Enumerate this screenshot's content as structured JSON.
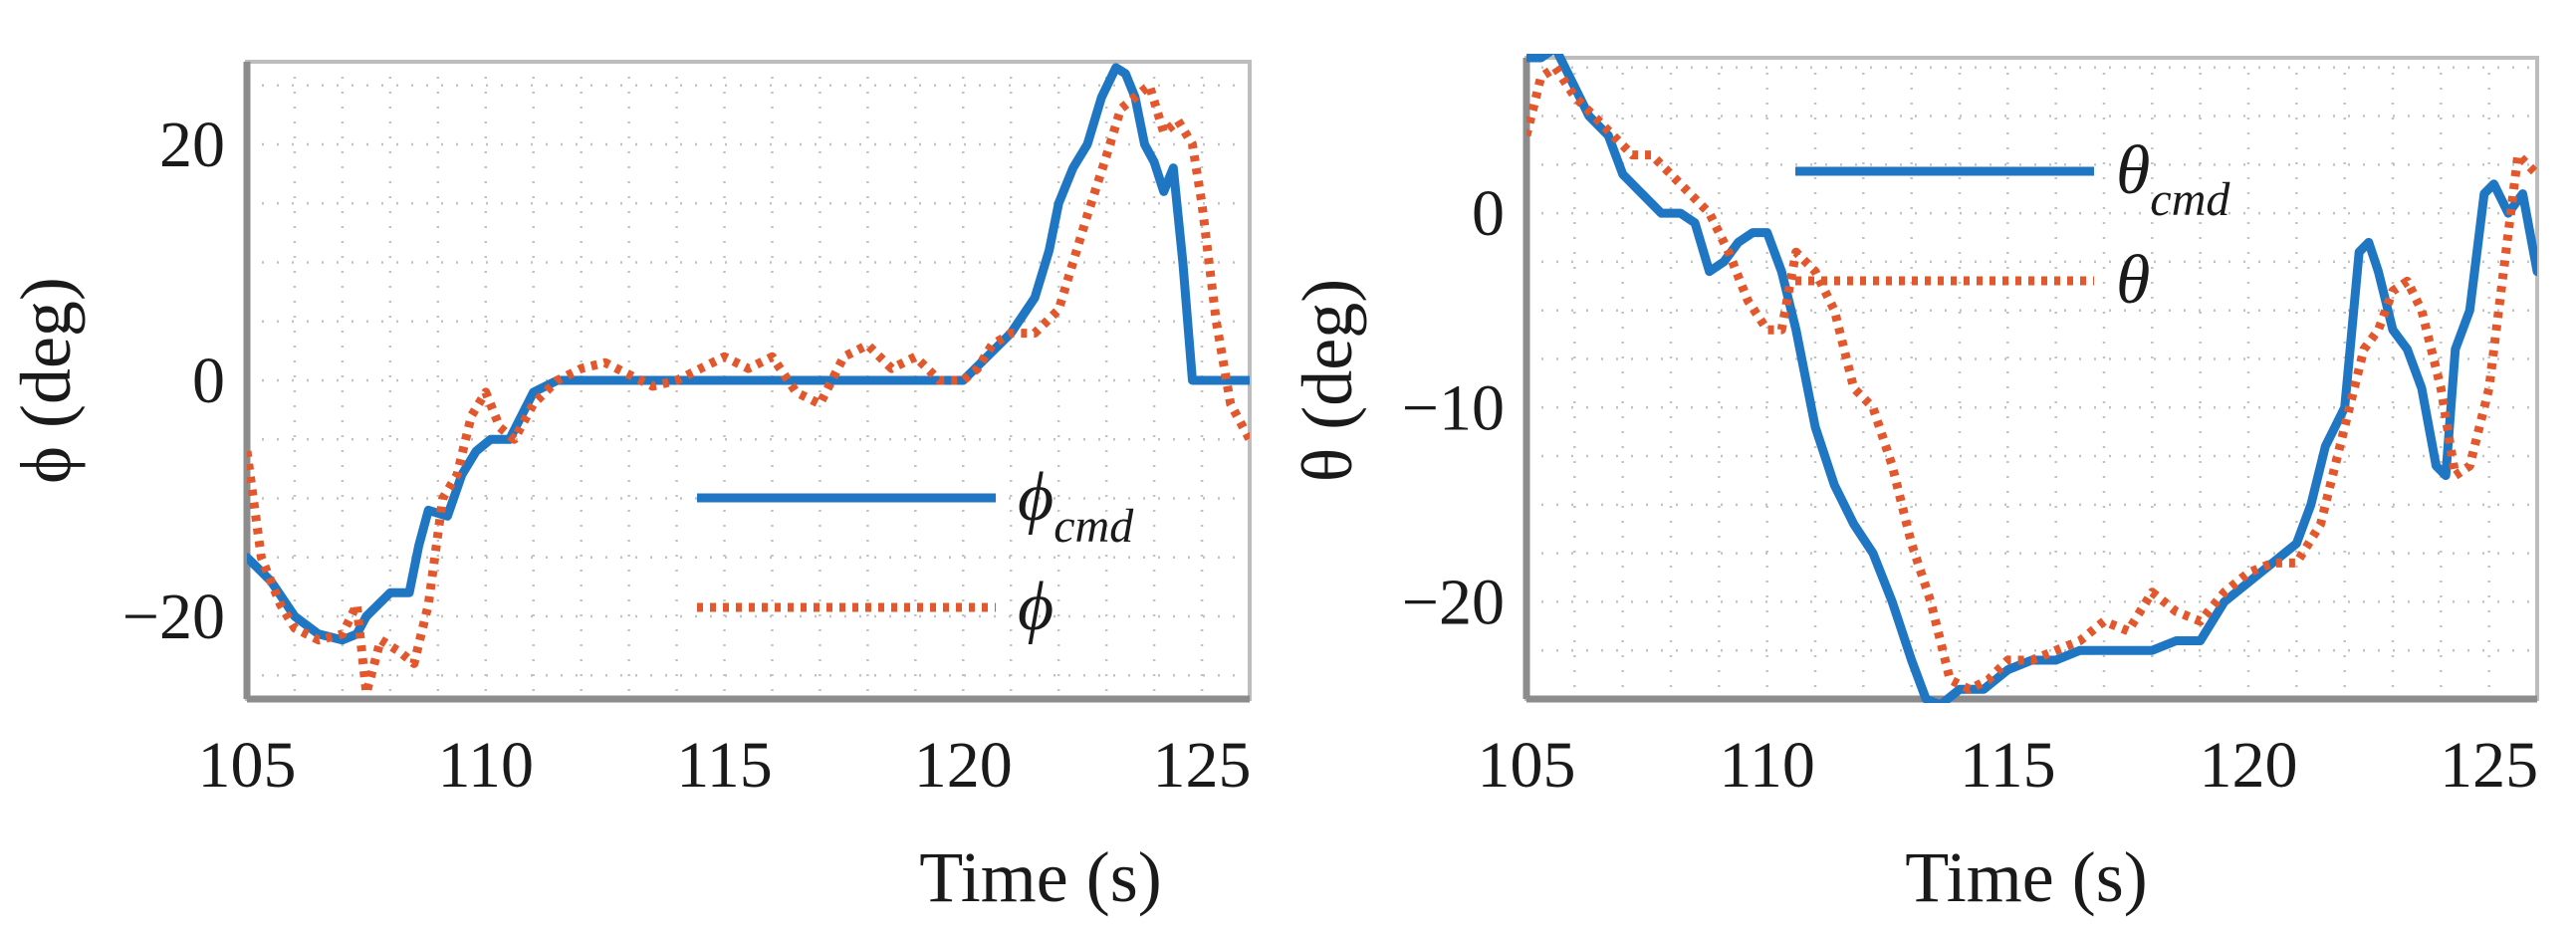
{
  "chart_data": [
    {
      "type": "line",
      "title": "",
      "xlabel": "Time (s)",
      "ylabel": "ϕ (deg)",
      "xlim": [
        105,
        126
      ],
      "ylim": [
        -27,
        27
      ],
      "grid": true,
      "legend_position": "lower-right",
      "xticks": [
        105,
        110,
        115,
        120,
        125
      ],
      "xtick_labels": [
        "105",
        "110",
        "115",
        "120",
        "125"
      ],
      "yticks": [
        -20,
        0,
        20
      ],
      "ytick_labels": [
        "−20",
        "0",
        "20"
      ],
      "series": [
        {
          "name": "ϕcmd",
          "legend_main": "ϕ",
          "legend_sub": "cmd",
          "color": "#1f77c4",
          "style": "solid",
          "x": [
            105,
            105.5,
            106,
            106.5,
            107,
            107.3,
            107.5,
            108,
            108.4,
            108.6,
            108.8,
            109.2,
            109.5,
            109.8,
            110.1,
            110.5,
            111,
            111.5,
            112,
            113,
            114,
            115,
            116,
            117,
            118,
            119,
            120,
            120.5,
            121,
            121.5,
            121.8,
            122,
            122.3,
            122.6,
            122.9,
            123.2,
            123.4,
            123.6,
            123.8,
            124,
            124.2,
            124.4,
            124.6,
            124.8,
            125,
            125.5,
            126
          ],
          "values": [
            -15,
            -17,
            -20,
            -21.5,
            -22,
            -21.5,
            -20,
            -18,
            -18,
            -14,
            -11,
            -11.5,
            -8,
            -6,
            -5,
            -5,
            -1,
            0,
            0,
            0,
            0,
            0,
            0,
            0,
            0,
            0,
            0,
            2,
            4,
            7,
            11,
            15,
            18,
            20,
            24,
            26.5,
            26,
            24,
            20,
            18.5,
            16,
            18,
            10,
            0,
            0,
            0,
            0
          ]
        },
        {
          "name": "ϕ",
          "legend_main": "ϕ",
          "legend_sub": "",
          "color": "#e2572b",
          "style": "dotted",
          "x": [
            105,
            105.3,
            105.7,
            106,
            106.5,
            107,
            107.3,
            107.5,
            107.8,
            108.2,
            108.5,
            108.8,
            109.1,
            109.4,
            109.7,
            110,
            110.3,
            110.6,
            111,
            111.5,
            112,
            112.5,
            113,
            113.5,
            114,
            114.5,
            115,
            115.5,
            116,
            116.5,
            117,
            117.5,
            118,
            118.5,
            119,
            119.5,
            120,
            120.3,
            120.6,
            121,
            121.5,
            122,
            122.3,
            122.6,
            123,
            123.3,
            123.6,
            123.9,
            124.2,
            124.5,
            124.8,
            125,
            125.3,
            125.6,
            126
          ],
          "values": [
            -6,
            -15,
            -19,
            -21,
            -22,
            -21.5,
            -19,
            -26.5,
            -22,
            -23,
            -24,
            -19,
            -10,
            -8,
            -3,
            -1,
            -4,
            -5,
            -2,
            0,
            1,
            1.5,
            0.5,
            -0.5,
            0,
            1,
            2,
            1,
            2,
            -1,
            -2,
            2,
            3,
            1,
            2,
            0,
            0,
            1,
            3,
            4,
            4,
            6,
            10,
            14,
            19,
            23,
            24,
            25,
            21,
            22,
            20,
            15,
            5,
            -2,
            -5
          ]
        }
      ]
    },
    {
      "type": "line",
      "title": "",
      "xlabel": "Time (s)",
      "ylabel": "θ (deg)",
      "xlim": [
        105,
        126
      ],
      "ylim": [
        -25,
        8
      ],
      "grid": true,
      "legend_position": "top-right",
      "xticks": [
        105,
        110,
        115,
        120,
        125
      ],
      "xtick_labels": [
        "105",
        "110",
        "115",
        "120",
        "125"
      ],
      "yticks": [
        -20,
        -10,
        0
      ],
      "ytick_labels": [
        "−20",
        "−10",
        "0"
      ],
      "series": [
        {
          "name": "θcmd",
          "legend_main": "θ",
          "legend_sub": "cmd",
          "color": "#1f77c4",
          "style": "solid",
          "x": [
            105,
            105.3,
            105.6,
            105.9,
            106.3,
            106.7,
            107,
            107.4,
            107.8,
            108.2,
            108.5,
            108.8,
            109.1,
            109.4,
            109.7,
            110,
            110.3,
            110.6,
            111,
            111.4,
            111.8,
            112.2,
            112.6,
            113,
            113.3,
            113.6,
            114,
            114.5,
            115,
            115.5,
            116,
            116.5,
            117,
            117.5,
            118,
            118.5,
            119,
            119.5,
            120,
            120.5,
            121,
            121.3,
            121.6,
            122,
            122.3,
            122.5,
            122.7,
            123,
            123.3,
            123.6,
            123.9,
            124.1,
            124.3,
            124.6,
            124.9,
            125.1,
            125.4,
            125.7,
            126
          ],
          "values": [
            8,
            8,
            8.5,
            7,
            5,
            4,
            2,
            1,
            0,
            0,
            -0.5,
            -3,
            -2.5,
            -1.5,
            -1,
            -1,
            -3,
            -6,
            -11,
            -14,
            -16,
            -17.5,
            -20,
            -23,
            -25,
            -25.3,
            -24.5,
            -24.5,
            -23.5,
            -23,
            -23,
            -22.5,
            -22.5,
            -22.5,
            -22.5,
            -22,
            -22,
            -20,
            -19,
            -18,
            -17,
            -15,
            -12,
            -10,
            -2,
            -1.5,
            -3,
            -6,
            -7,
            -9,
            -13,
            -13.5,
            -7,
            -5,
            1,
            1.5,
            0,
            1,
            -3
          ]
        },
        {
          "name": "θ",
          "legend_main": "θ",
          "legend_sub": "",
          "color": "#e2572b",
          "style": "dotted",
          "x": [
            105,
            105.3,
            105.6,
            106,
            106.4,
            106.8,
            107.2,
            107.6,
            108,
            108.4,
            108.8,
            109.2,
            109.6,
            110,
            110.3,
            110.6,
            111,
            111.4,
            111.8,
            112.2,
            112.6,
            113,
            113.4,
            113.8,
            114.2,
            114.6,
            115,
            115.5,
            116,
            116.5,
            117,
            117.5,
            118,
            118.5,
            119,
            119.5,
            120,
            120.5,
            121,
            121.5,
            122,
            122.4,
            122.7,
            123,
            123.3,
            123.6,
            124,
            124.3,
            124.6,
            125,
            125.3,
            125.6,
            126
          ],
          "values": [
            4,
            7,
            7.5,
            6,
            5,
            4,
            3,
            3,
            2,
            1,
            0,
            -2,
            -4.5,
            -6,
            -6,
            -2,
            -3,
            -5,
            -9,
            -10,
            -13,
            -17,
            -20,
            -24,
            -24.5,
            -24,
            -23,
            -23,
            -22.5,
            -22,
            -21,
            -21.5,
            -19.5,
            -20.5,
            -21,
            -19.5,
            -18.5,
            -18,
            -18,
            -16,
            -11,
            -7,
            -6,
            -4,
            -3.5,
            -5,
            -9,
            -13.5,
            -13,
            -9,
            -3,
            3,
            2
          ]
        }
      ]
    }
  ]
}
